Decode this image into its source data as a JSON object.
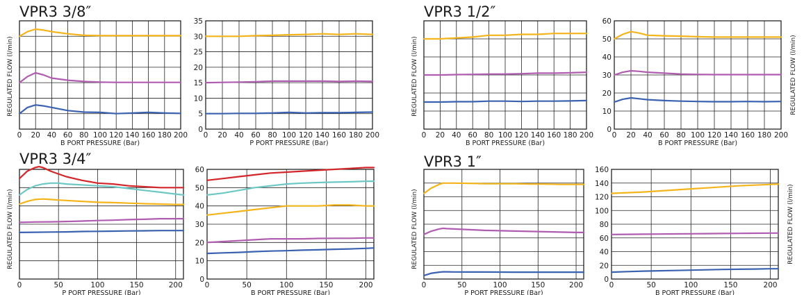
{
  "groups": [
    {
      "title": "VPR3 3/8″",
      "ylabel": "REGULATED FLOW (l/min)"
    },
    {
      "title": "VPR3 1/2″",
      "ylabel": "REGULATED FLOW (l/min)"
    },
    {
      "title": "VPR3 3/4″",
      "ylabel": "REGULATED FLOW (l/min)"
    },
    {
      "title": "VPR3 1″",
      "ylabel": "REGULATED FLOW (l/min)"
    }
  ],
  "colors": {
    "orange": "#f4b41a",
    "violet": "#b05cb0",
    "blue": "#3a62b0",
    "red": "#d4262a",
    "teal": "#6cc8c4",
    "grid": "#222222"
  },
  "chart_data": [
    {
      "type": "line",
      "xlabel": "B PORT PRESSURE (Bar)",
      "ylabel": "REGULATED FLOW (l/min)",
      "xlim": [
        0,
        200
      ],
      "ylim": [
        0,
        35
      ],
      "xticks": [
        0,
        20,
        40,
        60,
        80,
        100,
        120,
        140,
        160,
        180,
        200
      ],
      "yticks": [],
      "grid": true,
      "series": [
        {
          "color": "orange",
          "x": [
            0,
            10,
            20,
            30,
            40,
            60,
            80,
            100,
            120,
            140,
            160,
            180,
            200
          ],
          "y": [
            30,
            31.5,
            32.3,
            32,
            31.5,
            30.8,
            30.3,
            30.2,
            30.2,
            30.2,
            30.2,
            30.2,
            30.2
          ]
        },
        {
          "color": "violet",
          "x": [
            0,
            10,
            20,
            30,
            40,
            60,
            80,
            100,
            120,
            140,
            160,
            180,
            200
          ],
          "y": [
            15,
            17,
            18.2,
            17.5,
            16.5,
            15.8,
            15.4,
            15.2,
            15.1,
            15.1,
            15.1,
            15.1,
            15.1
          ]
        },
        {
          "color": "blue",
          "x": [
            0,
            10,
            20,
            30,
            40,
            60,
            80,
            100,
            120,
            140,
            160,
            180,
            200
          ],
          "y": [
            5,
            7,
            7.8,
            7.5,
            7,
            6,
            5.5,
            5.4,
            5,
            5.2,
            5.4,
            5.2,
            5.1
          ]
        }
      ]
    },
    {
      "type": "line",
      "xlabel": "P PORT PRESSURE (Bar)",
      "ylabel": "",
      "xlim": [
        0,
        200
      ],
      "ylim": [
        0,
        35
      ],
      "xticks": [
        0,
        20,
        40,
        60,
        80,
        100,
        120,
        140,
        160,
        180,
        200
      ],
      "yticks": [
        0,
        5,
        10,
        15,
        20,
        25,
        30,
        35
      ],
      "grid": true,
      "series": [
        {
          "color": "orange",
          "x": [
            0,
            20,
            40,
            60,
            80,
            100,
            120,
            140,
            160,
            180,
            200
          ],
          "y": [
            30,
            30,
            30,
            30.2,
            30.3,
            30.5,
            30.6,
            30.8,
            30.6,
            30.8,
            30.6
          ]
        },
        {
          "color": "violet",
          "x": [
            0,
            20,
            40,
            60,
            80,
            100,
            120,
            140,
            160,
            180,
            200
          ],
          "y": [
            15,
            15.1,
            15.2,
            15.3,
            15.5,
            15.5,
            15.5,
            15.5,
            15.4,
            15.5,
            15.4
          ]
        },
        {
          "color": "blue",
          "x": [
            0,
            20,
            40,
            60,
            80,
            100,
            120,
            140,
            160,
            180,
            200
          ],
          "y": [
            5,
            5,
            5.1,
            5.1,
            5.2,
            5.4,
            5.2,
            5.3,
            5.3,
            5.4,
            5.5
          ]
        }
      ]
    },
    {
      "type": "line",
      "xlabel": "B PORT PRESSURE (Bar)",
      "ylabel": "REGULATED FLOW (l/min)",
      "xlim": [
        0,
        200
      ],
      "ylim": [
        0,
        60
      ],
      "xticks": [
        0,
        20,
        40,
        60,
        80,
        100,
        120,
        140,
        160,
        180,
        200
      ],
      "yticks": [],
      "grid": true,
      "series": [
        {
          "color": "orange",
          "x": [
            0,
            20,
            40,
            60,
            80,
            100,
            120,
            140,
            160,
            180,
            200
          ],
          "y": [
            50,
            50,
            50.5,
            51,
            52,
            52,
            52.5,
            52.5,
            53,
            53,
            53
          ]
        },
        {
          "color": "violet",
          "x": [
            0,
            20,
            40,
            60,
            80,
            100,
            120,
            140,
            160,
            180,
            200
          ],
          "y": [
            30,
            30,
            30.2,
            30.3,
            30.5,
            30.5,
            30.7,
            31,
            31,
            31.2,
            31.5
          ]
        },
        {
          "color": "blue",
          "x": [
            0,
            20,
            40,
            60,
            80,
            100,
            120,
            140,
            160,
            180,
            200
          ],
          "y": [
            15,
            15,
            15.2,
            15.2,
            15.5,
            15.5,
            15.3,
            15.5,
            15.5,
            15.6,
            15.8
          ]
        }
      ]
    },
    {
      "type": "line",
      "xlabel": "B PORT PRESSURE (Bar)",
      "ylabel": "REGULATED FLOW (l/min)",
      "xlim": [
        0,
        200
      ],
      "ylim": [
        0,
        60
      ],
      "xticks": [
        0,
        20,
        40,
        60,
        80,
        100,
        120,
        140,
        160,
        180,
        200
      ],
      "yticks": [
        0,
        10,
        20,
        30,
        40,
        50,
        60
      ],
      "grid": true,
      "series": [
        {
          "color": "orange",
          "x": [
            0,
            10,
            20,
            30,
            40,
            60,
            80,
            100,
            120,
            140,
            160,
            180,
            200
          ],
          "y": [
            50,
            52.5,
            54,
            53.2,
            52,
            51.7,
            51.5,
            51.2,
            51,
            51,
            51,
            51,
            51
          ]
        },
        {
          "color": "violet",
          "x": [
            0,
            10,
            20,
            30,
            40,
            60,
            80,
            100,
            120,
            140,
            160,
            180,
            200
          ],
          "y": [
            30,
            31.5,
            32.3,
            32,
            31.5,
            31,
            30.5,
            30.3,
            30.2,
            30.2,
            30.2,
            30.2,
            30.2
          ]
        },
        {
          "color": "blue",
          "x": [
            0,
            10,
            20,
            30,
            40,
            60,
            80,
            100,
            120,
            140,
            160,
            180,
            200
          ],
          "y": [
            15,
            16.5,
            17.3,
            16.8,
            16.3,
            15.8,
            15.5,
            15.3,
            15.2,
            15.2,
            15.3,
            15.2,
            15.3
          ]
        }
      ]
    },
    {
      "type": "line",
      "xlabel": "P PORT PRESSURE (Bar)",
      "ylabel": "REGULATED FLOW (l/min)",
      "xlim": [
        0,
        210
      ],
      "ylim": [
        0,
        60
      ],
      "xticks": [
        0,
        50,
        100,
        150,
        200
      ],
      "yticks": [],
      "grid": true,
      "series": [
        {
          "color": "red",
          "x": [
            0,
            10,
            20,
            25,
            30,
            40,
            50,
            60,
            80,
            100,
            120,
            140,
            160,
            180,
            200,
            210
          ],
          "y": [
            55,
            59,
            61,
            61.5,
            61,
            59,
            57.5,
            56,
            54,
            52.5,
            52,
            51,
            50.5,
            50,
            50,
            50
          ]
        },
        {
          "color": "teal",
          "x": [
            0,
            10,
            20,
            30,
            40,
            50,
            60,
            80,
            100,
            120,
            140,
            160,
            180,
            200,
            210
          ],
          "y": [
            46,
            49,
            51,
            52,
            52.5,
            52.5,
            52,
            51.5,
            51,
            50.5,
            49.5,
            48.5,
            47.5,
            46.5,
            46
          ]
        },
        {
          "color": "orange",
          "x": [
            0,
            10,
            20,
            30,
            40,
            50,
            60,
            80,
            100,
            120,
            140,
            160,
            180,
            200,
            210
          ],
          "y": [
            41,
            42.5,
            43.5,
            43.8,
            43.5,
            43.2,
            43,
            42.5,
            42,
            41.8,
            41.5,
            41.2,
            41,
            40.8,
            40.8
          ]
        },
        {
          "color": "violet",
          "x": [
            0,
            20,
            40,
            60,
            80,
            100,
            120,
            140,
            160,
            180,
            200,
            210
          ],
          "y": [
            31,
            31.2,
            31.3,
            31.5,
            31.7,
            32,
            32.2,
            32.5,
            32.7,
            33,
            33,
            33
          ]
        },
        {
          "color": "blue",
          "x": [
            0,
            20,
            40,
            60,
            80,
            100,
            120,
            140,
            160,
            180,
            200,
            210
          ],
          "y": [
            25.5,
            25.6,
            25.7,
            25.8,
            26,
            26.1,
            26.2,
            26.3,
            26.4,
            26.5,
            26.5,
            26.5
          ]
        }
      ]
    },
    {
      "type": "line",
      "xlabel": "B PORT PRESSURE (Bar)",
      "ylabel": "",
      "xlim": [
        0,
        210
      ],
      "ylim": [
        0,
        60
      ],
      "xticks": [
        0,
        50,
        100,
        150,
        200
      ],
      "yticks": [
        0,
        10,
        20,
        30,
        40,
        50,
        60
      ],
      "grid": true,
      "series": [
        {
          "color": "red",
          "x": [
            0,
            20,
            40,
            60,
            80,
            100,
            120,
            140,
            160,
            180,
            200,
            210
          ],
          "y": [
            54,
            55,
            56,
            57,
            58,
            58.5,
            59,
            59.5,
            60,
            60.5,
            61,
            61
          ]
        },
        {
          "color": "teal",
          "x": [
            0,
            20,
            40,
            60,
            80,
            100,
            120,
            140,
            160,
            180,
            200,
            210
          ],
          "y": [
            46,
            47,
            48.5,
            50,
            51,
            52,
            52.5,
            52.8,
            53,
            53.2,
            53.5,
            53.5
          ]
        },
        {
          "color": "orange",
          "x": [
            0,
            20,
            40,
            60,
            80,
            100,
            120,
            140,
            160,
            180,
            200,
            210
          ],
          "y": [
            35,
            36,
            37,
            38,
            39,
            40,
            40,
            40,
            40.5,
            40.5,
            40,
            40
          ]
        },
        {
          "color": "violet",
          "x": [
            0,
            20,
            40,
            60,
            80,
            100,
            120,
            140,
            160,
            180,
            200,
            210
          ],
          "y": [
            20,
            20.5,
            21,
            21.5,
            22,
            22,
            22,
            22.2,
            22.3,
            22.3,
            22.5,
            22.5
          ]
        },
        {
          "color": "blue",
          "x": [
            0,
            20,
            40,
            60,
            80,
            100,
            120,
            140,
            160,
            180,
            200,
            210
          ],
          "y": [
            14,
            14.3,
            14.6,
            15,
            15.3,
            15.5,
            15.8,
            16,
            16.3,
            16.5,
            16.8,
            17
          ]
        }
      ]
    },
    {
      "type": "line",
      "xlabel": "P PORT PRESSURE (Bar)",
      "ylabel": "REGULATED FLOW (l/min)",
      "xlim": [
        0,
        210
      ],
      "ylim": [
        0,
        160
      ],
      "xticks": [
        0,
        50,
        100,
        150,
        200
      ],
      "yticks": [],
      "grid": true,
      "series": [
        {
          "color": "orange",
          "x": [
            0,
            10,
            20,
            25,
            30,
            40,
            60,
            80,
            100,
            120,
            140,
            160,
            180,
            200,
            210
          ],
          "y": [
            125,
            133,
            138,
            140,
            140,
            140,
            139.5,
            139,
            139,
            139,
            138.5,
            138.5,
            138,
            138,
            138
          ]
        },
        {
          "color": "violet",
          "x": [
            0,
            10,
            20,
            25,
            30,
            40,
            60,
            80,
            100,
            120,
            140,
            160,
            180,
            200,
            210
          ],
          "y": [
            65,
            70,
            73,
            74,
            73.5,
            73,
            72,
            71,
            70.5,
            70,
            69.5,
            69,
            68.5,
            68,
            68
          ]
        },
        {
          "color": "blue",
          "x": [
            0,
            10,
            20,
            25,
            30,
            40,
            60,
            80,
            100,
            120,
            140,
            160,
            180,
            200,
            210
          ],
          "y": [
            5,
            8.5,
            10,
            10.5,
            10.5,
            10.3,
            10.2,
            10.2,
            10.1,
            10,
            10,
            10,
            10,
            10,
            10
          ]
        }
      ]
    },
    {
      "type": "line",
      "xlabel": "B PORT PRESSURE (Bar)",
      "ylabel": "REGULATED FLOW (l/min)",
      "xlim": [
        0,
        210
      ],
      "ylim": [
        0,
        160
      ],
      "xticks": [
        0,
        50,
        100,
        150,
        200
      ],
      "yticks": [
        0,
        20,
        40,
        60,
        80,
        100,
        120,
        140,
        160
      ],
      "grid": true,
      "series": [
        {
          "color": "orange",
          "x": [
            0,
            20,
            40,
            60,
            80,
            100,
            120,
            140,
            160,
            180,
            200,
            210
          ],
          "y": [
            125,
            126,
            127,
            128.5,
            130,
            131.5,
            133,
            134.5,
            136,
            137,
            138,
            138.5
          ]
        },
        {
          "color": "violet",
          "x": [
            0,
            20,
            40,
            60,
            80,
            100,
            120,
            140,
            160,
            180,
            200,
            210
          ],
          "y": [
            65,
            65.2,
            65.4,
            65.6,
            65.8,
            66,
            66.2,
            66.4,
            66.6,
            66.8,
            67,
            67
          ]
        },
        {
          "color": "blue",
          "x": [
            0,
            20,
            40,
            60,
            80,
            100,
            120,
            140,
            160,
            180,
            200,
            210
          ],
          "y": [
            10,
            10.8,
            11.5,
            12,
            12.5,
            13,
            13.5,
            14,
            14.3,
            14.6,
            15,
            15
          ]
        }
      ]
    }
  ]
}
